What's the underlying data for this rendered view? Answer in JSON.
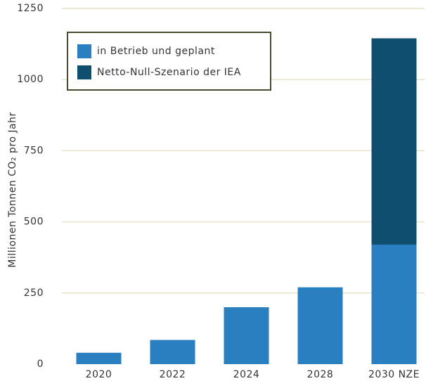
{
  "chart_data": {
    "type": "stacked_bar",
    "y_label": "Millionen Tonnen CO₂ pro Jahr",
    "categories": [
      "2020",
      "2022",
      "2024",
      "2028",
      "2030 NZE"
    ],
    "series": [
      {
        "name": "in Betrieb und geplant",
        "color": "#2a7fc1",
        "values": [
          40,
          85,
          200,
          270,
          420
        ]
      },
      {
        "name": "Netto-Null-Szenario der IEA",
        "color": "#0f4e6e",
        "values": [
          null,
          null,
          null,
          null,
          725
        ]
      }
    ],
    "ylim": [
      0,
      1250
    ],
    "yticks": [
      0,
      250,
      500,
      750,
      1000,
      1250
    ],
    "grid": true,
    "legend": "upper left"
  }
}
